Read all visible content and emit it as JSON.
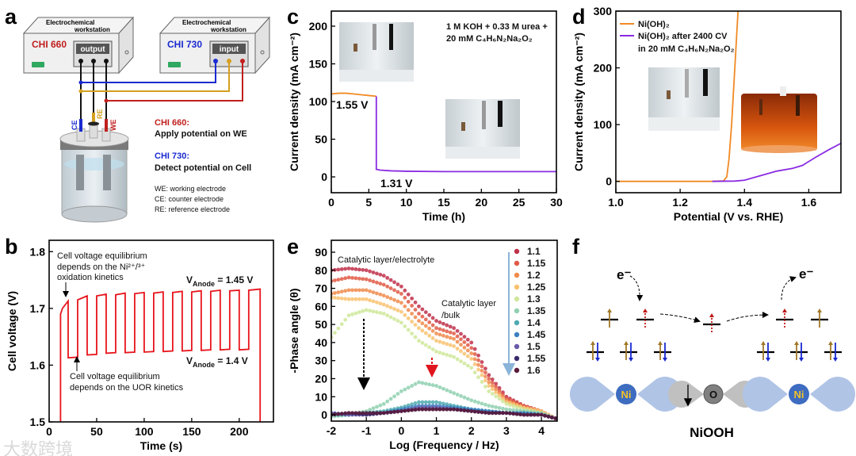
{
  "panel_letters": {
    "a": "a",
    "b": "b",
    "c": "c",
    "d": "d",
    "e": "e",
    "f": "f"
  },
  "watermark": "大数跨境",
  "panel_a": {
    "ws1": {
      "line1": "Electrochemical",
      "line2": "workstation",
      "name": "CHI 660",
      "port_label": "output"
    },
    "ws2": {
      "line1": "Electrochemical",
      "line2": "workstation",
      "name": "CHI 730",
      "port_label": "input"
    },
    "electrodes": {
      "ce": "CE",
      "re": "RE",
      "we": "WE"
    },
    "notes": {
      "chi660_title": "CHI 660:",
      "chi660_text": "Apply potential on WE",
      "chi730_title": "CHI 730:",
      "chi730_text": "Detect potential on Cell",
      "we": "WE: working electrode",
      "ce": "CE: counter electrode",
      "re": "RE: reference electrode"
    },
    "colors": {
      "red": "#c0201e",
      "blue": "#1a2ad0",
      "yellow": "#d4a020",
      "green": "#2fa860"
    }
  },
  "panel_f": {
    "e_left": "e⁻",
    "e_right": "e⁻",
    "ni_left": "Ni",
    "o_label": "O",
    "ni_right": "Ni",
    "title": "NiOOH"
  },
  "chart_data": [
    {
      "id": "b",
      "type": "line",
      "xlabel": "Time (s)",
      "ylabel": "Cell voltage (V)",
      "xlim": [
        0,
        236
      ],
      "ylim": [
        1.5,
        1.82
      ],
      "xticks": [
        0,
        50,
        100,
        150,
        200
      ],
      "yticks": [
        1.5,
        1.6,
        1.7,
        1.8
      ],
      "yticklabels": [
        "1.5",
        "1.6",
        "1.7",
        "1.8"
      ],
      "color": "#e8141c",
      "points": [
        [
          12,
          1.5
        ],
        [
          12,
          1.69
        ],
        [
          14,
          1.7
        ],
        [
          20,
          1.713
        ],
        [
          20,
          1.613
        ],
        [
          30,
          1.614
        ],
        [
          30,
          1.715
        ],
        [
          40,
          1.722
        ],
        [
          40,
          1.618
        ],
        [
          50,
          1.619
        ],
        [
          50,
          1.722
        ],
        [
          60,
          1.725
        ],
        [
          60,
          1.621
        ],
        [
          70,
          1.622
        ],
        [
          70,
          1.724
        ],
        [
          80,
          1.727
        ],
        [
          80,
          1.622
        ],
        [
          90,
          1.623
        ],
        [
          90,
          1.726
        ],
        [
          100,
          1.728
        ],
        [
          100,
          1.623
        ],
        [
          110,
          1.624
        ],
        [
          110,
          1.727
        ],
        [
          120,
          1.729
        ],
        [
          120,
          1.624
        ],
        [
          130,
          1.625
        ],
        [
          130,
          1.728
        ],
        [
          140,
          1.73
        ],
        [
          140,
          1.625
        ],
        [
          150,
          1.626
        ],
        [
          150,
          1.729
        ],
        [
          160,
          1.731
        ],
        [
          160,
          1.626
        ],
        [
          170,
          1.627
        ],
        [
          170,
          1.73
        ],
        [
          180,
          1.732
        ],
        [
          180,
          1.627
        ],
        [
          190,
          1.628
        ],
        [
          190,
          1.731
        ],
        [
          200,
          1.732
        ],
        [
          200,
          1.627
        ],
        [
          210,
          1.628
        ],
        [
          210,
          1.732
        ],
        [
          222,
          1.734
        ],
        [
          222,
          1.5
        ]
      ],
      "annotations": {
        "top_l1": "Cell voltage equilibrium",
        "top_l2": "depends on the Ni²⁺/³⁺",
        "top_l3": "oxidation kinetics",
        "bot_l1": "Cell voltage equilibrium",
        "bot_l2": "depends on the UOR kinetics",
        "high_v": "V",
        "high_sub": "Anode",
        "high_val": " = 1.45 V",
        "low_v": "V",
        "low_sub": "Anode",
        "low_val": " = 1.4 V"
      }
    },
    {
      "id": "c",
      "type": "line",
      "xlabel": "Time (h)",
      "ylabel": "Current density (mA cm⁻²)",
      "xlim": [
        0,
        30
      ],
      "ylim": [
        -21,
        220
      ],
      "xticks": [
        0,
        5,
        10,
        15,
        20,
        25,
        30
      ],
      "yticks": [
        0,
        50,
        100,
        150,
        200
      ],
      "series": [
        {
          "name": "1.55 V",
          "color": "#f08a24",
          "x": [
            0,
            1,
            2,
            3,
            4,
            5,
            6
          ],
          "y": [
            110,
            111,
            111,
            110,
            109,
            108,
            107
          ]
        },
        {
          "name": "1.31 V",
          "color": "#8a2be2",
          "x": [
            6,
            6,
            6.5,
            8,
            10,
            15,
            20,
            25,
            30
          ],
          "y": [
            107,
            10,
            9,
            8,
            7.5,
            7,
            7,
            7,
            7
          ]
        }
      ],
      "legend_text": {
        "line1": "1 M KOH + 0.33 M urea +",
        "line2": "20 mM C₄H₆N₂Na₂O₂"
      }
    },
    {
      "id": "d",
      "type": "line",
      "xlabel": "Potential (V vs. RHE)",
      "ylabel": "Current density (mA cm⁻²)",
      "xlim": [
        1.0,
        1.7
      ],
      "ylim": [
        -20,
        300
      ],
      "xticks": [
        1.0,
        1.2,
        1.4,
        1.6
      ],
      "xticklabels": [
        "1.0",
        "1.2",
        "1.4",
        "1.6"
      ],
      "yticks": [
        0,
        100,
        200,
        300
      ],
      "series": [
        {
          "name": "Ni(OH)₂",
          "color": "#f08a24",
          "x": [
            1.0,
            1.3,
            1.335,
            1.345,
            1.352,
            1.36,
            1.37,
            1.38
          ],
          "y": [
            0,
            0,
            1,
            8,
            40,
            100,
            200,
            300
          ]
        },
        {
          "name": "Ni(OH)₂ after 2400 CV",
          "name2": "in 20 mM C₄H₆N₂Na₂O₂",
          "color": "#8a2be2",
          "x": [
            1.3,
            1.37,
            1.4,
            1.45,
            1.5,
            1.55,
            1.58,
            1.62,
            1.66,
            1.7
          ],
          "y": [
            0,
            0.5,
            2,
            10,
            18,
            23,
            28,
            42,
            55,
            67
          ]
        }
      ]
    },
    {
      "id": "e",
      "type": "scatter",
      "xlabel": "Log (Frequency / Hz)",
      "ylabel": "-Phase angle (θ)",
      "xlim": [
        -2,
        4.45
      ],
      "ylim": [
        -3.5,
        96.6
      ],
      "xticks": [
        -2,
        -1,
        0,
        1,
        2,
        3,
        4
      ],
      "yticks": [
        0,
        10,
        20,
        30,
        40,
        50,
        60,
        70,
        80,
        90
      ],
      "x": [
        -2,
        -1.5,
        -1,
        -0.5,
        0,
        0.5,
        1,
        1.5,
        2,
        2.5,
        3,
        3.5,
        4,
        4.4
      ],
      "series": [
        {
          "name": "1.1",
          "color": "#c0304a",
          "y": [
            80,
            81,
            80,
            77,
            71,
            60,
            52,
            48,
            40,
            22,
            10,
            5,
            2,
            -2
          ]
        },
        {
          "name": "1.15",
          "color": "#e05a45",
          "y": [
            74,
            76,
            75,
            72,
            67,
            56,
            48,
            45,
            37,
            20,
            9,
            5,
            2,
            -2
          ]
        },
        {
          "name": "1.2",
          "color": "#f08a4b",
          "y": [
            67,
            69,
            69,
            66,
            62,
            52,
            45,
            42,
            34,
            18,
            8,
            4,
            2,
            -2
          ]
        },
        {
          "name": "1.25",
          "color": "#f9c270",
          "y": [
            65,
            64,
            64,
            61,
            57,
            48,
            41,
            38,
            31,
            16,
            7,
            4,
            2,
            -2
          ]
        },
        {
          "name": "1.3",
          "color": "#cfe79a",
          "y": [
            43,
            55,
            58,
            56,
            51,
            41,
            35,
            32,
            26,
            13,
            6,
            3,
            1,
            -2
          ]
        },
        {
          "name": "1.35",
          "color": "#8fd0b0",
          "y": [
            -1,
            0,
            2,
            6,
            13,
            18,
            16,
            12,
            8,
            5,
            3,
            2,
            1,
            -2
          ]
        },
        {
          "name": "1.4",
          "color": "#4eaab0",
          "y": [
            0,
            0,
            1,
            2,
            4,
            7,
            7,
            5,
            3,
            2,
            1,
            1,
            0,
            -2
          ]
        },
        {
          "name": "1.45",
          "color": "#3a7fc0",
          "y": [
            1,
            0,
            1,
            1,
            3,
            5,
            5,
            4,
            3,
            2,
            1,
            1,
            0,
            -2
          ]
        },
        {
          "name": "1.5",
          "color": "#6a5aa8",
          "y": [
            1,
            0,
            0,
            1,
            2,
            4,
            4,
            3,
            2,
            1,
            1,
            0,
            0,
            -2
          ]
        },
        {
          "name": "1.55",
          "color": "#3a2a6a",
          "y": [
            0,
            1,
            0,
            1,
            2,
            3,
            3,
            3,
            2,
            1,
            1,
            0,
            0,
            -2
          ]
        },
        {
          "name": "1.6",
          "color": "#5a1a3a",
          "y": [
            0,
            1,
            1,
            1,
            2,
            3,
            3,
            3,
            2,
            1,
            1,
            0,
            0,
            -2
          ]
        }
      ],
      "annotations": {
        "interface": "Catalytic layer/electrolyte",
        "bulk_l1": "Catalytic layer",
        "bulk_l2": "/bulk"
      },
      "legend_placement": "top-right"
    }
  ]
}
